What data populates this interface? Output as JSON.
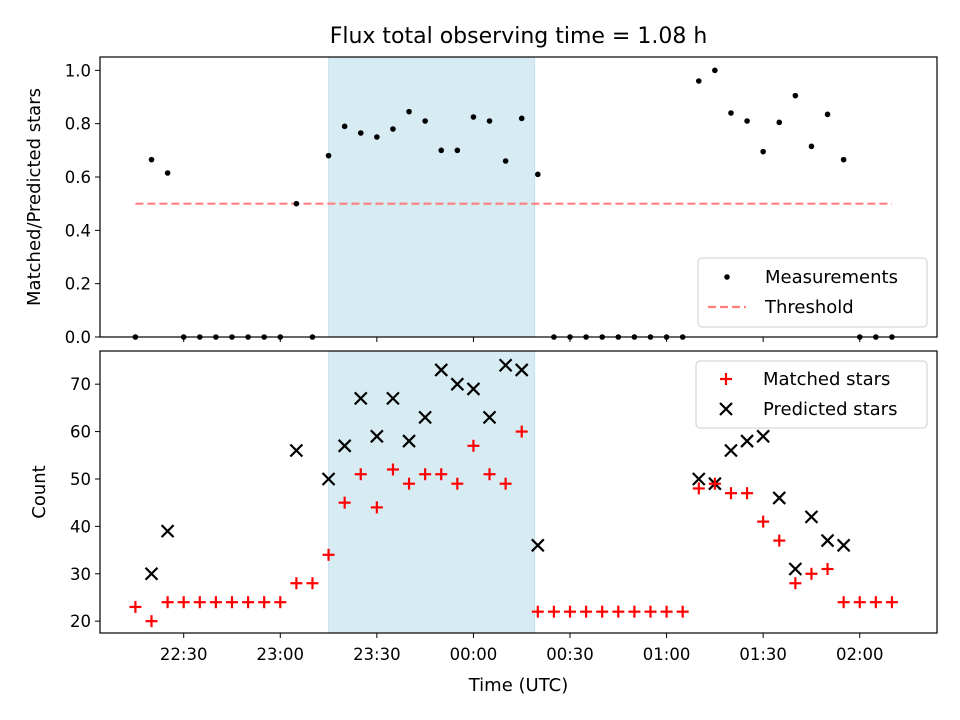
{
  "chart_data": {
    "title": "Flux total observing time = 1.08 h",
    "xlabel": "Time (UTC)",
    "x_ticks": [
      "22:30",
      "23:00",
      "23:30",
      "00:00",
      "00:30",
      "01:00",
      "01:30",
      "02:00"
    ],
    "x_range": [
      "22:04",
      "02:24"
    ],
    "shaded_interval": [
      "23:15",
      "00:19"
    ],
    "colors": {
      "shade": "#add8e6",
      "threshold": "#ff7f7f",
      "measurement": "#000000",
      "matched": "#ff0000",
      "predicted": "#000000"
    },
    "panels": [
      {
        "type": "scatter",
        "ylabel": "Matched/Predicted stars",
        "ylim": [
          0,
          1.05
        ],
        "y_ticks": [
          "0.0",
          "0.2",
          "0.4",
          "0.6",
          "0.8",
          "1.0"
        ],
        "legend_position": "lower-right",
        "series": [
          {
            "name": "Measurements",
            "marker": "dot",
            "points": [
              [
                "22:15",
                0.0
              ],
              [
                "22:20",
                0.665
              ],
              [
                "22:25",
                0.615
              ],
              [
                "22:30",
                0.0
              ],
              [
                "22:35",
                0.0
              ],
              [
                "22:40",
                0.0
              ],
              [
                "22:45",
                0.0
              ],
              [
                "22:50",
                0.0
              ],
              [
                "22:55",
                0.0
              ],
              [
                "23:00",
                0.0
              ],
              [
                "23:05",
                0.5
              ],
              [
                "23:10",
                0.0
              ],
              [
                "23:15",
                0.68
              ],
              [
                "23:20",
                0.79
              ],
              [
                "23:25",
                0.765
              ],
              [
                "23:30",
                0.75
              ],
              [
                "23:35",
                0.78
              ],
              [
                "23:40",
                0.845
              ],
              [
                "23:45",
                0.81
              ],
              [
                "23:50",
                0.7
              ],
              [
                "23:55",
                0.7
              ],
              [
                "00:00",
                0.825
              ],
              [
                "00:05",
                0.81
              ],
              [
                "00:10",
                0.66
              ],
              [
                "00:15",
                0.82
              ],
              [
                "00:20",
                0.61
              ],
              [
                "00:25",
                0.0
              ],
              [
                "00:30",
                0.0
              ],
              [
                "00:35",
                0.0
              ],
              [
                "00:40",
                0.0
              ],
              [
                "00:45",
                0.0
              ],
              [
                "00:50",
                0.0
              ],
              [
                "00:55",
                0.0
              ],
              [
                "01:00",
                0.0
              ],
              [
                "01:05",
                0.0
              ],
              [
                "01:10",
                0.96
              ],
              [
                "01:15",
                1.0
              ],
              [
                "01:20",
                0.84
              ],
              [
                "01:25",
                0.81
              ],
              [
                "01:30",
                0.695
              ],
              [
                "01:35",
                0.805
              ],
              [
                "01:40",
                0.905
              ],
              [
                "01:45",
                0.715
              ],
              [
                "01:50",
                0.835
              ],
              [
                "01:55",
                0.665
              ],
              [
                "02:00",
                0.0
              ],
              [
                "02:05",
                0.0
              ],
              [
                "02:10",
                0.0
              ]
            ]
          },
          {
            "name": "Threshold",
            "marker": "dashed-line",
            "points": [
              [
                "22:15",
                0.5
              ],
              [
                "02:10",
                0.5
              ]
            ]
          }
        ]
      },
      {
        "type": "scatter",
        "ylabel": "Count",
        "ylim": [
          17.5,
          77
        ],
        "y_ticks": [
          "20",
          "30",
          "40",
          "50",
          "60",
          "70"
        ],
        "legend_position": "top-right",
        "series": [
          {
            "name": "Matched stars",
            "marker": "plus",
            "points": [
              [
                "22:15",
                23
              ],
              [
                "22:20",
                20
              ],
              [
                "22:25",
                24
              ],
              [
                "22:30",
                24
              ],
              [
                "22:35",
                24
              ],
              [
                "22:40",
                24
              ],
              [
                "22:45",
                24
              ],
              [
                "22:50",
                24
              ],
              [
                "22:55",
                24
              ],
              [
                "23:00",
                24
              ],
              [
                "23:05",
                28
              ],
              [
                "23:10",
                28
              ],
              [
                "23:15",
                34
              ],
              [
                "23:20",
                45
              ],
              [
                "23:25",
                51
              ],
              [
                "23:30",
                44
              ],
              [
                "23:35",
                52
              ],
              [
                "23:40",
                49
              ],
              [
                "23:45",
                51
              ],
              [
                "23:50",
                51
              ],
              [
                "23:55",
                49
              ],
              [
                "00:00",
                57
              ],
              [
                "00:05",
                51
              ],
              [
                "00:10",
                49
              ],
              [
                "00:15",
                60
              ],
              [
                "00:20",
                22
              ],
              [
                "00:25",
                22
              ],
              [
                "00:30",
                22
              ],
              [
                "00:35",
                22
              ],
              [
                "00:40",
                22
              ],
              [
                "00:45",
                22
              ],
              [
                "00:50",
                22
              ],
              [
                "00:55",
                22
              ],
              [
                "01:00",
                22
              ],
              [
                "01:05",
                22
              ],
              [
                "01:10",
                48
              ],
              [
                "01:15",
                49
              ],
              [
                "01:20",
                47
              ],
              [
                "01:25",
                47
              ],
              [
                "01:30",
                41
              ],
              [
                "01:35",
                37
              ],
              [
                "01:40",
                28
              ],
              [
                "01:45",
                30
              ],
              [
                "01:50",
                31
              ],
              [
                "01:55",
                24
              ],
              [
                "02:00",
                24
              ],
              [
                "02:05",
                24
              ],
              [
                "02:10",
                24
              ]
            ]
          },
          {
            "name": "Predicted stars",
            "marker": "x",
            "points": [
              [
                "22:20",
                30
              ],
              [
                "22:25",
                39
              ],
              [
                "23:05",
                56
              ],
              [
                "23:15",
                50
              ],
              [
                "23:20",
                57
              ],
              [
                "23:25",
                67
              ],
              [
                "23:30",
                59
              ],
              [
                "23:35",
                67
              ],
              [
                "23:40",
                58
              ],
              [
                "23:45",
                63
              ],
              [
                "23:50",
                73
              ],
              [
                "23:55",
                70
              ],
              [
                "00:00",
                69
              ],
              [
                "00:05",
                63
              ],
              [
                "00:10",
                74
              ],
              [
                "00:15",
                73
              ],
              [
                "00:20",
                36
              ],
              [
                "01:10",
                50
              ],
              [
                "01:15",
                49
              ],
              [
                "01:20",
                56
              ],
              [
                "01:25",
                58
              ],
              [
                "01:30",
                59
              ],
              [
                "01:35",
                46
              ],
              [
                "01:40",
                31
              ],
              [
                "01:45",
                42
              ],
              [
                "01:50",
                37
              ],
              [
                "01:55",
                36
              ]
            ]
          }
        ]
      }
    ]
  }
}
